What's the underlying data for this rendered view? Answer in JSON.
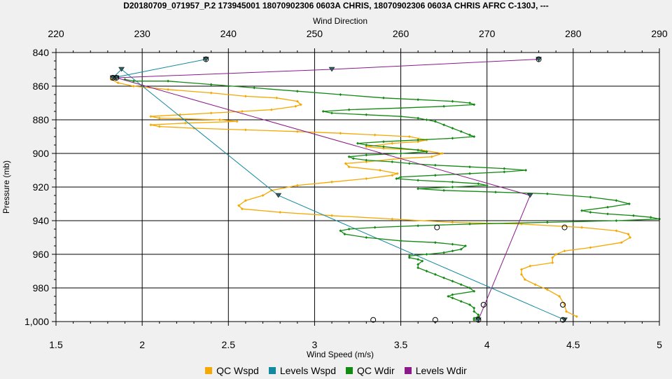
{
  "chart_data": {
    "type": "line",
    "title": "D20180709_071957_P.2 173945001 18070902306 0603A CHRIS, 18070902306 0603A CHRIS AFRC C-130J, ---",
    "top_axis": {
      "label": "Wind Direction",
      "range": [
        220,
        290
      ],
      "ticks": [
        "220",
        "230",
        "240",
        "250",
        "260",
        "270",
        "280",
        "290"
      ]
    },
    "bottom_axis": {
      "label": "Wind Speed (m/s)",
      "range": [
        1.5,
        5
      ],
      "ticks": [
        "1.5",
        "2",
        "2.5",
        "3",
        "3.5",
        "4",
        "4.5",
        "5"
      ]
    },
    "y_axis": {
      "label": "Pressure (mb)",
      "range": [
        840,
        1000
      ],
      "inverted": true,
      "ticks": [
        "840",
        "860",
        "880",
        "900",
        "920",
        "940",
        "960",
        "980",
        "1,000"
      ]
    },
    "grid": true,
    "legend_position": "bottom",
    "colors": {
      "qc_wspd": "#f5a800",
      "levels_wspd": "#12899e",
      "qc_wdir": "#138a13",
      "levels_wdir": "#8a1a8a"
    },
    "series": [
      {
        "name": "QC Wspd",
        "axis": "bottom",
        "points": [
          [
            1.82,
            856
          ],
          [
            1.86,
            858
          ],
          [
            1.95,
            860
          ],
          [
            2.15,
            862
          ],
          [
            2.4,
            864
          ],
          [
            2.6,
            866
          ],
          [
            2.78,
            867
          ],
          [
            2.9,
            869
          ],
          [
            2.92,
            871
          ],
          [
            2.89,
            872
          ],
          [
            2.75,
            874
          ],
          [
            2.58,
            875
          ],
          [
            2.4,
            876
          ],
          [
            2.22,
            877
          ],
          [
            2.05,
            878
          ],
          [
            2.1,
            879
          ],
          [
            2.45,
            880
          ],
          [
            2.55,
            881
          ],
          [
            2.25,
            882
          ],
          [
            2.05,
            883
          ],
          [
            2.1,
            884
          ],
          [
            2.3,
            885
          ],
          [
            2.6,
            886
          ],
          [
            2.9,
            887
          ],
          [
            3.15,
            888
          ],
          [
            3.35,
            889
          ],
          [
            3.55,
            890
          ],
          [
            3.65,
            892
          ],
          [
            3.6,
            893
          ],
          [
            3.45,
            894
          ],
          [
            3.3,
            896
          ],
          [
            3.4,
            897
          ],
          [
            3.62,
            898
          ],
          [
            3.74,
            900
          ],
          [
            3.68,
            902
          ],
          [
            3.5,
            903
          ],
          [
            3.3,
            905
          ],
          [
            3.18,
            906
          ],
          [
            3.2,
            908
          ],
          [
            3.38,
            910
          ],
          [
            3.48,
            912
          ],
          [
            3.45,
            913
          ],
          [
            3.3,
            915
          ],
          [
            3.1,
            917
          ],
          [
            2.9,
            919
          ],
          [
            2.75,
            922
          ],
          [
            2.7,
            925
          ],
          [
            2.6,
            928
          ],
          [
            2.56,
            931
          ],
          [
            2.58,
            933
          ],
          [
            2.8,
            935
          ],
          [
            3.1,
            937
          ],
          [
            3.45,
            939
          ],
          [
            3.8,
            941
          ],
          [
            4.2,
            942
          ],
          [
            4.55,
            944
          ],
          [
            4.75,
            946
          ],
          [
            4.82,
            948
          ],
          [
            4.83,
            950
          ],
          [
            4.78,
            953
          ],
          [
            4.6,
            956
          ],
          [
            4.45,
            958
          ],
          [
            4.4,
            960
          ],
          [
            4.38,
            962
          ],
          [
            4.38,
            965
          ],
          [
            4.25,
            967
          ],
          [
            4.2,
            969
          ],
          [
            4.2,
            972
          ],
          [
            4.22,
            975
          ],
          [
            4.28,
            978
          ],
          [
            4.35,
            981
          ],
          [
            4.42,
            985
          ],
          [
            4.45,
            990
          ],
          [
            4.46,
            994
          ],
          [
            4.52,
            997
          ]
        ]
      },
      {
        "name": "Levels Wspd",
        "axis": "bottom",
        "points": [
          [
            2.37,
            844
          ],
          [
            1.83,
            855
          ],
          [
            1.88,
            850
          ],
          [
            2.79,
            925
          ],
          [
            4.45,
            999
          ]
        ]
      },
      {
        "name": "QC Wdir",
        "axis": "top",
        "points": [
          [
            228,
            856
          ],
          [
            229,
            857
          ],
          [
            233,
            857
          ],
          [
            238,
            859
          ],
          [
            243,
            861
          ],
          [
            248,
            863
          ],
          [
            253,
            865
          ],
          [
            258,
            867
          ],
          [
            262,
            868
          ],
          [
            266,
            869
          ],
          [
            268,
            870
          ],
          [
            268.5,
            871
          ],
          [
            265,
            872
          ],
          [
            260,
            873
          ],
          [
            254,
            874
          ],
          [
            251,
            875
          ],
          [
            252,
            876
          ],
          [
            256,
            877
          ],
          [
            260,
            878
          ],
          [
            262,
            879
          ],
          [
            263,
            880
          ],
          [
            264,
            881
          ],
          [
            265,
            883
          ],
          [
            266,
            885
          ],
          [
            267,
            887
          ],
          [
            268,
            889
          ],
          [
            268.5,
            890
          ],
          [
            266,
            891
          ],
          [
            262,
            892
          ],
          [
            258,
            893
          ],
          [
            255,
            894
          ],
          [
            256,
            895
          ],
          [
            258,
            896
          ],
          [
            260,
            897
          ],
          [
            262,
            898
          ],
          [
            263,
            899
          ],
          [
            260,
            900
          ],
          [
            256,
            901
          ],
          [
            254,
            902
          ],
          [
            254.5,
            903
          ],
          [
            256,
            904
          ],
          [
            259,
            905
          ],
          [
            261,
            906
          ],
          [
            264,
            907
          ],
          [
            268,
            908
          ],
          [
            272,
            909
          ],
          [
            274.5,
            910
          ],
          [
            272,
            911
          ],
          [
            268,
            912
          ],
          [
            264,
            913
          ],
          [
            260,
            914
          ],
          [
            259.5,
            915
          ],
          [
            262,
            916
          ],
          [
            266,
            917
          ],
          [
            269,
            918
          ],
          [
            270,
            919
          ],
          [
            266,
            920
          ],
          [
            262,
            921
          ],
          [
            265,
            922
          ],
          [
            271,
            923
          ],
          [
            277,
            924
          ],
          [
            282,
            926
          ],
          [
            285,
            928
          ],
          [
            286.5,
            930
          ],
          [
            284,
            932
          ],
          [
            281,
            934
          ],
          [
            282,
            935
          ],
          [
            284,
            936
          ],
          [
            287,
            937
          ],
          [
            289,
            938
          ],
          [
            290,
            939
          ],
          [
            285,
            940
          ],
          [
            277,
            941
          ],
          [
            268,
            942
          ],
          [
            262,
            943
          ],
          [
            257,
            944
          ],
          [
            254,
            945
          ],
          [
            253,
            946
          ],
          [
            253.5,
            948
          ],
          [
            256,
            950
          ],
          [
            260,
            952
          ],
          [
            264,
            953
          ],
          [
            266,
            954
          ],
          [
            267.5,
            955
          ],
          [
            267,
            957
          ],
          [
            266,
            958
          ],
          [
            265,
            959
          ],
          [
            263,
            960
          ],
          [
            261,
            961
          ],
          [
            261,
            962
          ],
          [
            262,
            963
          ],
          [
            262.5,
            964
          ],
          [
            262,
            966
          ],
          [
            262,
            968
          ],
          [
            263,
            970
          ],
          [
            264,
            972
          ],
          [
            265,
            974
          ],
          [
            266,
            976
          ],
          [
            267,
            978
          ],
          [
            268,
            980
          ],
          [
            268.5,
            982
          ],
          [
            266,
            984
          ],
          [
            265.5,
            985
          ],
          [
            266,
            986
          ],
          [
            267,
            988
          ],
          [
            268,
            990
          ],
          [
            268.5,
            992
          ],
          [
            268.5,
            994
          ],
          [
            269,
            996
          ],
          [
            269,
            997
          ],
          [
            268.5,
            998
          ],
          [
            268.5,
            999
          ]
        ]
      },
      {
        "name": "Levels Wdir",
        "axis": "top",
        "points": [
          [
            276,
            844
          ],
          [
            252,
            850
          ],
          [
            227,
            855
          ],
          [
            275,
            925
          ],
          [
            269,
            999
          ]
        ]
      }
    ],
    "markers_circles": [
      [
        2.37,
        844
      ],
      [
        1.83,
        855
      ],
      [
        3.71,
        944
      ],
      [
        4.45,
        944
      ],
      [
        3.98,
        990
      ],
      [
        4.44,
        990
      ],
      [
        3.34,
        999
      ],
      [
        3.7,
        999
      ],
      [
        3.95,
        999
      ],
      [
        4.44,
        999
      ],
      [
        276,
        844
      ],
      [
        227,
        855
      ]
    ]
  }
}
